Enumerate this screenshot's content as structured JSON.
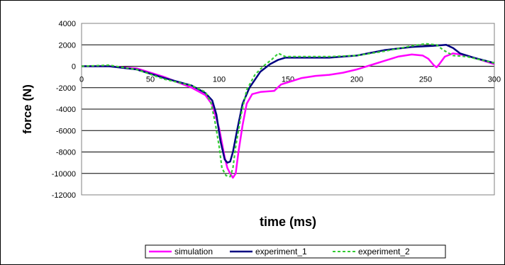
{
  "chart_data": {
    "type": "line",
    "title": "",
    "xlabel": "time (ms)",
    "ylabel": "force (N)",
    "xlim": [
      0,
      300
    ],
    "ylim": [
      -12000,
      4000
    ],
    "x_ticks": [
      "0",
      "50",
      "100",
      "150",
      "200",
      "250",
      "300"
    ],
    "y_ticks": [
      "4000",
      "2000",
      "0",
      "-2000",
      "-4000",
      "-6000",
      "-8000",
      "-10000",
      "-12000"
    ],
    "grid": "horizontal",
    "legend_position": "bottom",
    "series": [
      {
        "name": "simulation",
        "color": "#ff00ff",
        "style": "solid",
        "points": [
          [
            0,
            0
          ],
          [
            20,
            0
          ],
          [
            40,
            -200
          ],
          [
            60,
            -1000
          ],
          [
            80,
            -2000
          ],
          [
            90,
            -2700
          ],
          [
            95,
            -3600
          ],
          [
            100,
            -5800
          ],
          [
            104,
            -8500
          ],
          [
            106,
            -9500
          ],
          [
            108,
            -10000
          ],
          [
            110,
            -10400
          ],
          [
            112,
            -10000
          ],
          [
            114,
            -8000
          ],
          [
            117,
            -5500
          ],
          [
            120,
            -3500
          ],
          [
            124,
            -2600
          ],
          [
            130,
            -2400
          ],
          [
            140,
            -2300
          ],
          [
            145,
            -1700
          ],
          [
            150,
            -1500
          ],
          [
            160,
            -1100
          ],
          [
            170,
            -900
          ],
          [
            180,
            -800
          ],
          [
            190,
            -600
          ],
          [
            200,
            -300
          ],
          [
            210,
            100
          ],
          [
            220,
            500
          ],
          [
            230,
            900
          ],
          [
            240,
            1100
          ],
          [
            248,
            1000
          ],
          [
            252,
            700
          ],
          [
            256,
            100
          ],
          [
            258,
            -100
          ],
          [
            260,
            200
          ],
          [
            264,
            900
          ],
          [
            270,
            1200
          ],
          [
            280,
            1000
          ],
          [
            290,
            600
          ],
          [
            300,
            200
          ]
        ]
      },
      {
        "name": "experiment_1",
        "color": "#000080",
        "style": "solid",
        "points": [
          [
            0,
            0
          ],
          [
            20,
            0
          ],
          [
            40,
            -300
          ],
          [
            60,
            -1100
          ],
          [
            80,
            -1800
          ],
          [
            90,
            -2500
          ],
          [
            95,
            -3200
          ],
          [
            98,
            -4500
          ],
          [
            101,
            -7000
          ],
          [
            104,
            -8700
          ],
          [
            106,
            -9000
          ],
          [
            108,
            -8900
          ],
          [
            110,
            -8000
          ],
          [
            113,
            -6000
          ],
          [
            117,
            -3500
          ],
          [
            122,
            -2000
          ],
          [
            130,
            -500
          ],
          [
            137,
            200
          ],
          [
            143,
            600
          ],
          [
            148,
            800
          ],
          [
            160,
            800
          ],
          [
            180,
            800
          ],
          [
            200,
            1000
          ],
          [
            220,
            1500
          ],
          [
            240,
            1800
          ],
          [
            255,
            1900
          ],
          [
            265,
            2000
          ],
          [
            270,
            1700
          ],
          [
            275,
            1200
          ],
          [
            285,
            800
          ],
          [
            300,
            300
          ]
        ]
      },
      {
        "name": "experiment_2",
        "color": "#33cc33",
        "style": "dashed",
        "points": [
          [
            0,
            0
          ],
          [
            20,
            100
          ],
          [
            40,
            -300
          ],
          [
            60,
            -1200
          ],
          [
            80,
            -1800
          ],
          [
            90,
            -2400
          ],
          [
            94,
            -3400
          ],
          [
            97,
            -5200
          ],
          [
            100,
            -7500
          ],
          [
            102,
            -9500
          ],
          [
            105,
            -10200
          ],
          [
            108,
            -10300
          ],
          [
            110,
            -9500
          ],
          [
            112,
            -7500
          ],
          [
            116,
            -4500
          ],
          [
            120,
            -2200
          ],
          [
            126,
            -800
          ],
          [
            132,
            0
          ],
          [
            138,
            600
          ],
          [
            143,
            1200
          ],
          [
            148,
            900
          ],
          [
            160,
            900
          ],
          [
            180,
            900
          ],
          [
            200,
            1000
          ],
          [
            220,
            1400
          ],
          [
            240,
            1900
          ],
          [
            250,
            2100
          ],
          [
            258,
            2000
          ],
          [
            263,
            1500
          ],
          [
            270,
            1000
          ],
          [
            280,
            900
          ],
          [
            290,
            600
          ],
          [
            300,
            300
          ]
        ]
      }
    ]
  }
}
